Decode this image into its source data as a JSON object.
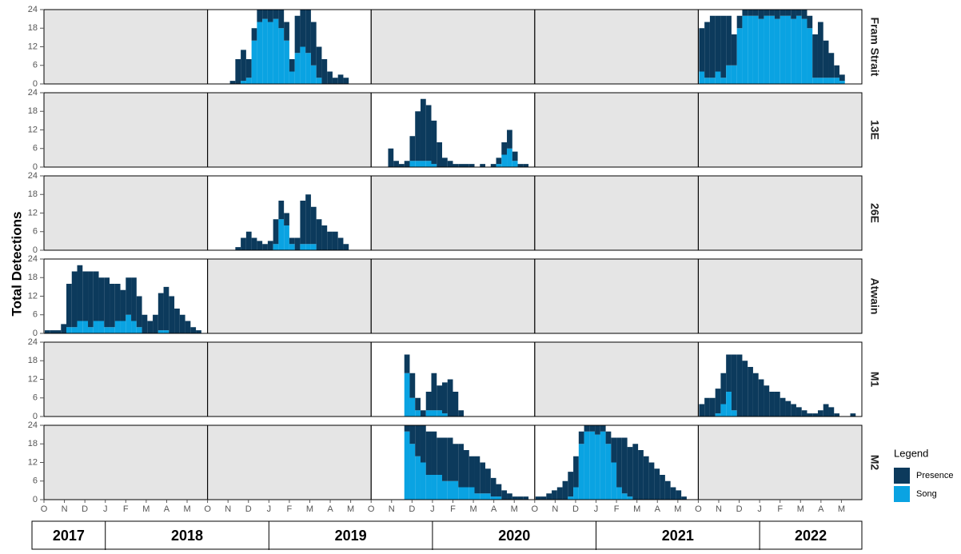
{
  "chart_data": {
    "type": "bar",
    "ylabel": "Total Detections",
    "ylim": [
      0,
      24
    ],
    "yticks": [
      0,
      6,
      12,
      18,
      24
    ],
    "legend_title": "Legend",
    "series": [
      {
        "name": "Presence",
        "color": "#0c3a5c"
      },
      {
        "name": "Song",
        "color": "#0aa3e2"
      }
    ],
    "month_labels": [
      "O",
      "N",
      "D",
      "J",
      "F",
      "M",
      "A",
      "M",
      "O",
      "N",
      "D",
      "J",
      "F",
      "M",
      "A",
      "M",
      "O",
      "N",
      "D",
      "J",
      "F",
      "M",
      "A",
      "M",
      "O",
      "N",
      "D",
      "J",
      "F",
      "M",
      "A",
      "M",
      "O",
      "N",
      "D",
      "J",
      "F",
      "M",
      "A",
      "M"
    ],
    "years": [
      "2017",
      "2018",
      "2019",
      "2020",
      "2021",
      "2022"
    ],
    "facets": [
      {
        "name": "Fram Strait",
        "panels": [
          null,
          {
            "presence": [
              0,
              0,
              0,
              0,
              1,
              8,
              10,
              6,
              4,
              4,
              3,
              4,
              3,
              6,
              6,
              4,
              12,
              12,
              14,
              14,
              10,
              8,
              4,
              2,
              3,
              2,
              0,
              0,
              0,
              0
            ],
            "song": [
              0,
              0,
              0,
              0,
              0,
              0,
              1,
              2,
              14,
              20,
              21,
              20,
              21,
              18,
              14,
              4,
              10,
              12,
              10,
              6,
              2,
              0,
              0,
              0,
              0,
              0,
              0,
              0,
              0,
              0
            ]
          },
          null,
          null,
          {
            "presence": [
              14,
              18,
              20,
              18,
              20,
              16,
              10,
              4,
              2,
              2,
              2,
              3,
              2,
              2,
              3,
              2,
              2,
              3,
              2,
              3,
              4,
              14,
              18,
              12,
              8,
              4,
              2,
              0,
              0,
              0
            ],
            "song": [
              4,
              2,
              2,
              4,
              2,
              6,
              6,
              18,
              22,
              22,
              22,
              21,
              22,
              22,
              21,
              22,
              22,
              21,
              22,
              21,
              18,
              2,
              2,
              2,
              2,
              2,
              1,
              0,
              0,
              0
            ]
          }
        ]
      },
      {
        "name": "13E",
        "panels": [
          null,
          null,
          {
            "presence": [
              0,
              0,
              0,
              6,
              2,
              1,
              2,
              8,
              16,
              20,
              18,
              14,
              8,
              3,
              2,
              1,
              1,
              1,
              1,
              0,
              1,
              0,
              1,
              2,
              4,
              6,
              3,
              1,
              1,
              0
            ],
            "song": [
              0,
              0,
              0,
              0,
              0,
              0,
              0,
              2,
              2,
              2,
              2,
              1,
              0,
              0,
              0,
              0,
              0,
              0,
              0,
              0,
              0,
              0,
              0,
              1,
              4,
              6,
              2,
              0,
              0,
              0
            ]
          },
          null,
          null
        ]
      },
      {
        "name": "26E",
        "panels": [
          null,
          {
            "presence": [
              0,
              0,
              0,
              0,
              0,
              1,
              4,
              6,
              4,
              3,
              2,
              3,
              8,
              6,
              4,
              2,
              4,
              14,
              16,
              12,
              10,
              8,
              6,
              6,
              4,
              2,
              0,
              0,
              0,
              0
            ],
            "song": [
              0,
              0,
              0,
              0,
              0,
              0,
              0,
              0,
              0,
              0,
              0,
              0,
              2,
              10,
              8,
              2,
              0,
              2,
              2,
              2,
              0,
              0,
              0,
              0,
              0,
              0,
              0,
              0,
              0,
              0
            ]
          },
          null,
          null,
          null
        ]
      },
      {
        "name": "Atwain",
        "panels": [
          {
            "presence": [
              1,
              1,
              1,
              3,
              14,
              18,
              18,
              16,
              18,
              16,
              14,
              16,
              14,
              12,
              10,
              12,
              14,
              10,
              6,
              4,
              6,
              12,
              14,
              12,
              8,
              6,
              4,
              2,
              1,
              0
            ],
            "song": [
              0,
              0,
              0,
              0,
              2,
              2,
              4,
              4,
              2,
              4,
              4,
              2,
              2,
              4,
              4,
              6,
              4,
              2,
              0,
              0,
              0,
              1,
              1,
              0,
              0,
              0,
              0,
              0,
              0,
              0
            ]
          },
          null,
          null,
          null,
          null
        ]
      },
      {
        "name": "M1",
        "panels": [
          null,
          null,
          {
            "presence": [
              0,
              0,
              0,
              0,
              0,
              0,
              6,
              8,
              4,
              2,
              6,
              12,
              8,
              10,
              12,
              8,
              2,
              0,
              0,
              0,
              0,
              0,
              0,
              0,
              0,
              0,
              0,
              0,
              0,
              0
            ],
            "song": [
              0,
              0,
              0,
              0,
              0,
              0,
              14,
              6,
              2,
              0,
              2,
              2,
              2,
              1,
              0,
              0,
              0,
              0,
              0,
              0,
              0,
              0,
              0,
              0,
              0,
              0,
              0,
              0,
              0,
              0
            ]
          },
          null,
          {
            "presence": [
              4,
              6,
              6,
              8,
              10,
              12,
              18,
              20,
              18,
              16,
              14,
              12,
              10,
              8,
              8,
              6,
              5,
              4,
              3,
              2,
              1,
              1,
              2,
              4,
              3,
              1,
              0,
              0,
              1,
              0
            ],
            "song": [
              0,
              0,
              0,
              1,
              4,
              8,
              2,
              0,
              0,
              0,
              0,
              0,
              0,
              0,
              0,
              0,
              0,
              0,
              0,
              0,
              0,
              0,
              0,
              0,
              0,
              0,
              0,
              0,
              0,
              0
            ]
          }
        ]
      },
      {
        "name": "M2",
        "panels": [
          null,
          null,
          {
            "presence": [
              0,
              0,
              0,
              0,
              0,
              0,
              2,
              6,
              10,
              12,
              14,
              14,
              12,
              14,
              14,
              12,
              14,
              12,
              10,
              12,
              10,
              8,
              6,
              4,
              3,
              2,
              1,
              1,
              1,
              0
            ],
            "song": [
              0,
              0,
              0,
              0,
              0,
              0,
              22,
              18,
              14,
              12,
              8,
              8,
              8,
              6,
              6,
              6,
              4,
              4,
              4,
              2,
              2,
              2,
              1,
              1,
              0,
              0,
              0,
              0,
              0,
              0
            ]
          },
          {
            "presence": [
              1,
              1,
              2,
              3,
              4,
              6,
              8,
              10,
              4,
              2,
              2,
              3,
              2,
              4,
              8,
              16,
              18,
              16,
              18,
              16,
              14,
              12,
              10,
              8,
              6,
              4,
              3,
              1,
              0,
              0
            ],
            "song": [
              0,
              0,
              0,
              0,
              0,
              0,
              1,
              4,
              18,
              22,
              22,
              21,
              22,
              18,
              12,
              4,
              2,
              1,
              0,
              0,
              0,
              0,
              0,
              0,
              0,
              0,
              0,
              0,
              0,
              0
            ]
          },
          null
        ]
      }
    ]
  }
}
